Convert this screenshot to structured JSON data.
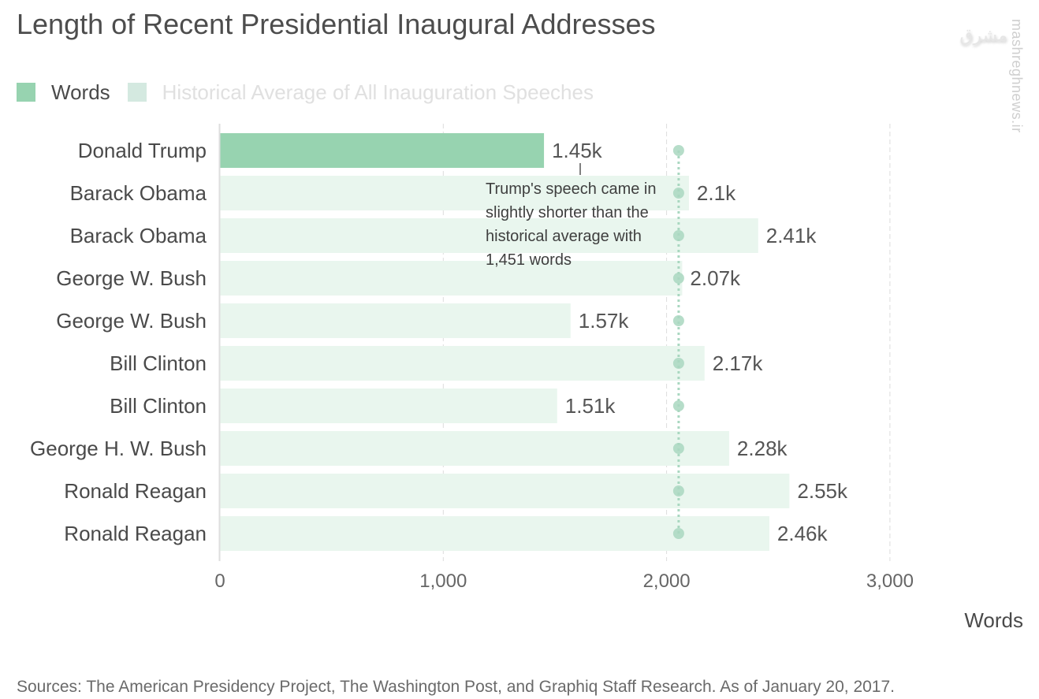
{
  "chart_data": {
    "type": "bar",
    "orientation": "horizontal",
    "title": "Length of Recent Presidential Inaugural Addresses",
    "categories": [
      "Donald Trump",
      "Barack Obama",
      "Barack Obama",
      "George W. Bush",
      "George W. Bush",
      "Bill Clinton",
      "Bill Clinton",
      "George H. W. Bush",
      "Ronald Reagan",
      "Ronald Reagan"
    ],
    "series": [
      {
        "name": "Words",
        "values": [
          1451,
          2100,
          2410,
          2070,
          1570,
          2170,
          1510,
          2280,
          2550,
          2460
        ],
        "value_labels": [
          "1.45k",
          "2.1k",
          "2.41k",
          "2.07k",
          "1.57k",
          "2.17k",
          "1.51k",
          "2.28k",
          "2.55k",
          "2.46k"
        ],
        "highlighted_index": 0
      },
      {
        "name": "Historical Average of All Inauguration Speeches",
        "type": "reference-line",
        "value": 2054
      }
    ],
    "xlabel": "Words",
    "ylabel": "",
    "xlim": [
      0,
      3500
    ],
    "xticks": [
      0,
      1000,
      2000,
      3000
    ],
    "xtick_labels": [
      "0",
      "1,000",
      "2,000",
      "3,000"
    ],
    "grid": true,
    "legend": "top-left",
    "annotation": {
      "target": "Donald Trump",
      "text_lines": [
        "Trump's speech came in",
        "slightly shorter than the",
        "historical average with",
        "1,451 words"
      ]
    }
  },
  "legend": {
    "items": [
      {
        "label": "Words",
        "color": "#97d3b0"
      },
      {
        "label": "Historical Average of All Inauguration Speeches",
        "color": "#d4e9e0"
      }
    ]
  },
  "colors": {
    "highlight_bar": "#97d3b0",
    "other_bar": "#e9f6ee",
    "average_marker": "#a9d7c0",
    "grid": "#dcdcdc"
  },
  "source": "Sources: The American Presidency Project, The Washington Post, and Graphiq Staff Research. As of January 20, 2017.",
  "watermark": {
    "text": "mashreghnews.ir",
    "logo": "مشرق"
  }
}
